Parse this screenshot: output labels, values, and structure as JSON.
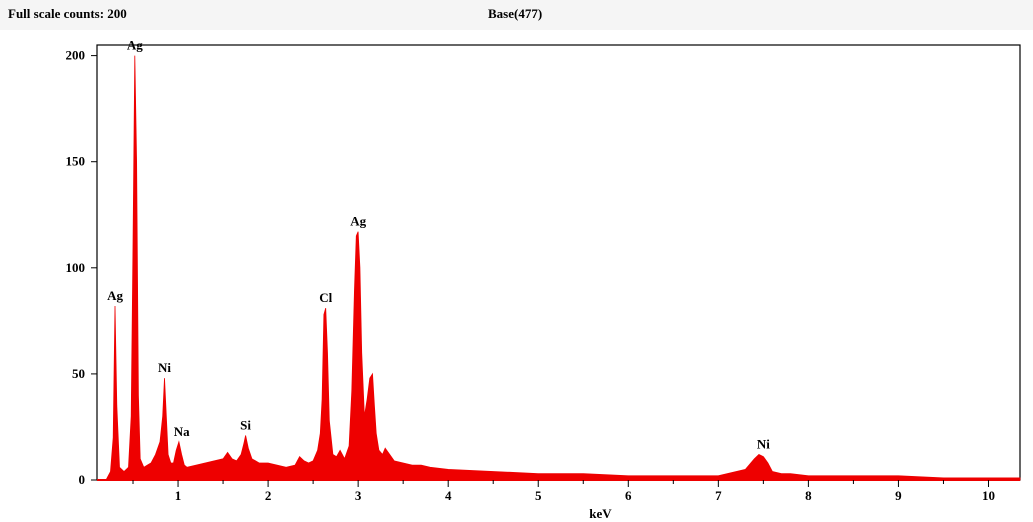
{
  "header": {
    "full_scale": "Full scale counts: 200",
    "base_label": "Base(477)"
  },
  "colors": {
    "spectrum": "#ee0000",
    "axis": "#000000",
    "header_bg": "#f5f5f5"
  },
  "chart_data": {
    "type": "area",
    "title": "",
    "xlabel": "keV",
    "ylabel": "",
    "xlim": [
      0.1,
      10.35
    ],
    "ylim": [
      0,
      205
    ],
    "xticks": [
      1,
      2,
      3,
      4,
      5,
      6,
      7,
      8,
      9,
      10
    ],
    "yticks": [
      0,
      50,
      100,
      150,
      200
    ],
    "grid": false,
    "series": [
      {
        "x": [
          0.1,
          0.2,
          0.25,
          0.28,
          0.3,
          0.32,
          0.35,
          0.4,
          0.45,
          0.48,
          0.5,
          0.52,
          0.54,
          0.56,
          0.58,
          0.62,
          0.66,
          0.7,
          0.75,
          0.8,
          0.83,
          0.85,
          0.87,
          0.89,
          0.92,
          0.95,
          0.98,
          1.01,
          1.04,
          1.07,
          1.1,
          1.2,
          1.3,
          1.4,
          1.5,
          1.55,
          1.6,
          1.65,
          1.7,
          1.73,
          1.75,
          1.78,
          1.82,
          1.9,
          2.0,
          2.1,
          2.2,
          2.3,
          2.35,
          2.4,
          2.45,
          2.5,
          2.55,
          2.58,
          2.6,
          2.62,
          2.64,
          2.66,
          2.68,
          2.72,
          2.76,
          2.8,
          2.85,
          2.9,
          2.93,
          2.96,
          2.98,
          3.0,
          3.02,
          3.04,
          3.07,
          3.1,
          3.13,
          3.16,
          3.18,
          3.2,
          3.23,
          3.27,
          3.3,
          3.35,
          3.4,
          3.5,
          3.6,
          3.7,
          3.8,
          4.0,
          4.5,
          5.0,
          5.5,
          6.0,
          6.5,
          7.0,
          7.3,
          7.4,
          7.45,
          7.5,
          7.55,
          7.6,
          7.7,
          7.8,
          8.0,
          8.5,
          9.0,
          9.5,
          10.0,
          10.35
        ],
        "values": [
          0,
          0,
          4,
          20,
          82,
          35,
          6,
          4,
          6,
          30,
          110,
          200,
          150,
          40,
          10,
          6,
          7,
          8,
          12,
          18,
          30,
          48,
          30,
          12,
          8,
          8,
          14,
          18,
          12,
          7,
          6,
          7,
          8,
          9,
          10,
          13,
          10,
          9,
          12,
          17,
          21,
          15,
          10,
          8,
          8,
          7,
          6,
          7,
          11,
          9,
          8,
          9,
          14,
          22,
          38,
          78,
          81,
          60,
          28,
          12,
          11,
          14,
          10,
          16,
          42,
          90,
          115,
          117,
          100,
          60,
          30,
          38,
          48,
          50,
          35,
          22,
          14,
          12,
          15,
          12,
          9,
          8,
          7,
          7,
          6,
          5,
          4,
          3,
          3,
          2,
          2,
          2,
          5,
          10,
          12,
          11,
          8,
          4,
          3,
          3,
          2,
          2,
          2,
          1,
          1,
          1
        ]
      }
    ],
    "annotations": [
      {
        "label": "Ag",
        "x": 0.52,
        "y": 200
      },
      {
        "label": "Ag",
        "x": 0.3,
        "y": 82
      },
      {
        "label": "Ni",
        "x": 0.85,
        "y": 48
      },
      {
        "label": "Na",
        "x": 1.04,
        "y": 18
      },
      {
        "label": "Si",
        "x": 1.75,
        "y": 21
      },
      {
        "label": "Cl",
        "x": 2.64,
        "y": 81
      },
      {
        "label": "Ag",
        "x": 3.0,
        "y": 117
      },
      {
        "label": "Ni",
        "x": 7.5,
        "y": 12
      }
    ]
  }
}
